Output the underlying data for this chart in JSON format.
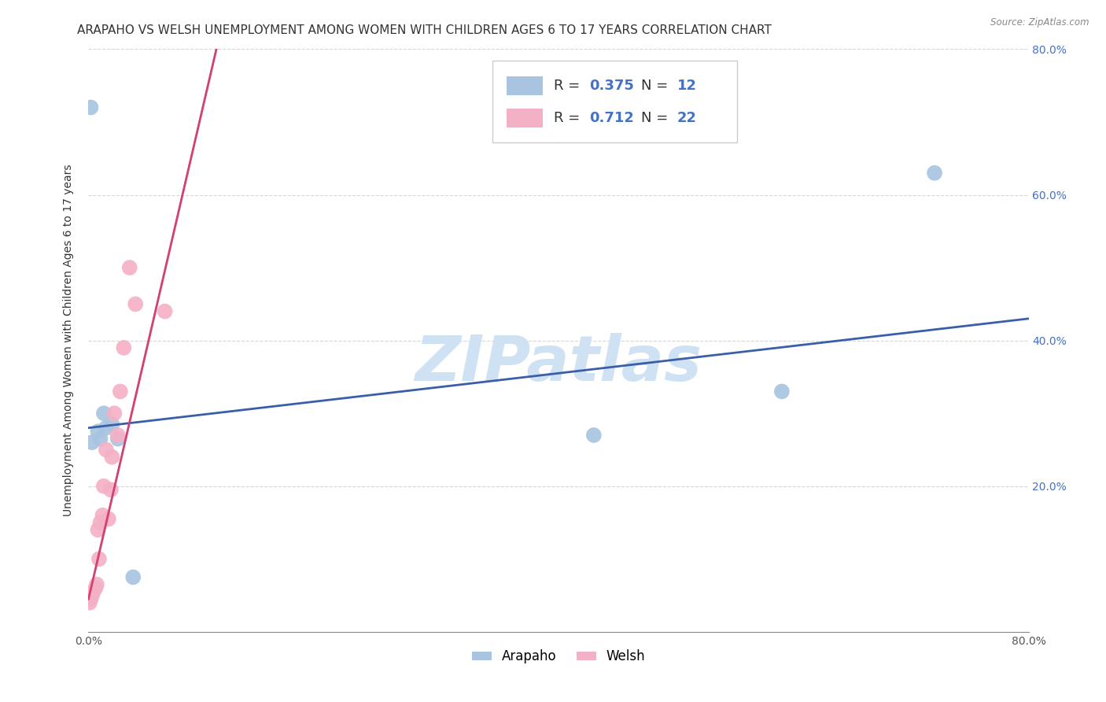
{
  "title": "ARAPAHO VS WELSH UNEMPLOYMENT AMONG WOMEN WITH CHILDREN AGES 6 TO 17 YEARS CORRELATION CHART",
  "source": "Source: ZipAtlas.com",
  "ylabel": "Unemployment Among Women with Children Ages 6 to 17 years",
  "xlim": [
    0.0,
    0.8
  ],
  "ylim": [
    0.0,
    0.8
  ],
  "xticks": [
    0.0,
    0.1,
    0.2,
    0.3,
    0.4,
    0.5,
    0.6,
    0.7,
    0.8
  ],
  "yticks": [
    0.0,
    0.2,
    0.4,
    0.6,
    0.8
  ],
  "xtick_labels": [
    "0.0%",
    "",
    "",
    "",
    "",
    "",
    "",
    "",
    "80.0%"
  ],
  "ytick_right_labels": [
    "",
    "20.0%",
    "40.0%",
    "60.0%",
    "80.0%"
  ],
  "arapaho_color": "#a8c4e0",
  "welsh_color": "#f4b0c4",
  "arapaho_line_color": "#3a5fa8",
  "welsh_line_color": "#d44070",
  "arapaho_R": 0.375,
  "arapaho_N": 12,
  "welsh_R": 0.712,
  "welsh_N": 22,
  "legend_label_arapaho": "Arapaho",
  "legend_label_welsh": "Welsh",
  "watermark": "ZIPatlas",
  "arapaho_x": [
    0.002,
    0.008,
    0.01,
    0.013,
    0.015,
    0.02,
    0.025,
    0.038,
    0.43,
    0.59,
    0.72,
    0.003
  ],
  "arapaho_y": [
    0.72,
    0.275,
    0.265,
    0.3,
    0.28,
    0.285,
    0.265,
    0.075,
    0.27,
    0.33,
    0.63,
    0.26
  ],
  "welsh_x": [
    0.001,
    0.002,
    0.003,
    0.004,
    0.006,
    0.007,
    0.008,
    0.009,
    0.01,
    0.012,
    0.013,
    0.015,
    0.017,
    0.019,
    0.02,
    0.022,
    0.025,
    0.027,
    0.03,
    0.035,
    0.04,
    0.065
  ],
  "welsh_y": [
    0.04,
    0.045,
    0.05,
    0.055,
    0.06,
    0.065,
    0.14,
    0.1,
    0.15,
    0.16,
    0.2,
    0.25,
    0.155,
    0.195,
    0.24,
    0.3,
    0.27,
    0.33,
    0.39,
    0.5,
    0.45,
    0.44
  ],
  "arapaho_line_x0": 0.0,
  "arapaho_line_y0": 0.28,
  "arapaho_line_x1": 0.8,
  "arapaho_line_y1": 0.43,
  "welsh_line_x0": 0.0,
  "welsh_line_y0": 0.045,
  "welsh_line_x1": 0.08,
  "welsh_line_y1": 0.6,
  "background_color": "#ffffff",
  "grid_color": "#cccccc",
  "title_fontsize": 11,
  "axis_label_fontsize": 10,
  "tick_fontsize": 10,
  "watermark_color": "#cfe2f3",
  "watermark_fontsize": 58
}
